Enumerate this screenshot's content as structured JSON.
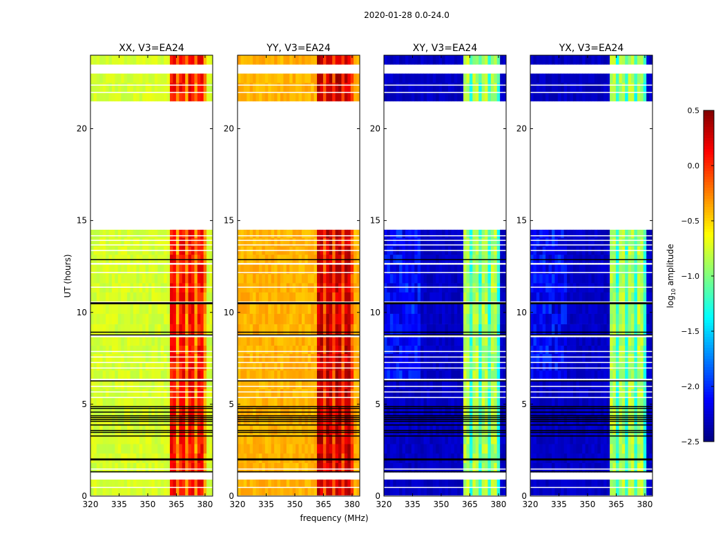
{
  "chart_data": {
    "type": "heatmap",
    "title": "2020-01-28 0.0-24.0",
    "xlabel": "frequency (MHz)",
    "ylabel": "UT (hours)",
    "xlim": [
      320,
      384
    ],
    "ylim": [
      0,
      24
    ],
    "xticks": [
      "320",
      "335",
      "350",
      "365",
      "380"
    ],
    "xtick_values": [
      320,
      335,
      350,
      365,
      380
    ],
    "yticks": [
      "0",
      "5",
      "10",
      "15",
      "20"
    ],
    "ytick_values": [
      0,
      5,
      10,
      15,
      20
    ],
    "colorbar": {
      "label": "log",
      "label_sub": "10",
      "label_rest": " amplitude",
      "range": [
        -2.5,
        0.5
      ],
      "ticks": [
        "0.5",
        "0.0",
        "−0.5",
        "−1.0",
        "−1.5",
        "−2.0",
        "−2.5"
      ],
      "tick_values": [
        0.5,
        0.0,
        -0.5,
        -1.0,
        -1.5,
        -2.0,
        -2.5
      ],
      "colormap": "jet"
    },
    "data_time_ranges": [
      [
        0.05,
        0.9
      ],
      [
        1.3,
        4.9
      ],
      [
        4.9,
        6.3
      ],
      [
        6.4,
        8.65
      ],
      [
        8.8,
        10.5
      ],
      [
        10.6,
        12.6
      ],
      [
        12.7,
        14.5
      ],
      [
        21.5,
        23.0
      ],
      [
        23.5,
        24.0
      ]
    ],
    "flagged_black_times": [
      1.35,
      2.0,
      2.05,
      3.3,
      3.5,
      3.6,
      3.9,
      4.1,
      4.2,
      4.3,
      4.4,
      4.6,
      4.8,
      4.9,
      6.3,
      8.8,
      8.95,
      10.5,
      10.55,
      12.9
    ],
    "flagged_white_times": [
      0.5,
      1.0,
      1.5,
      5.4,
      5.7,
      6.0,
      7.0,
      7.3,
      7.6,
      7.9,
      11.4,
      12.2,
      13.4,
      13.7,
      13.95,
      14.2,
      22.0,
      22.4
    ],
    "panels": [
      {
        "title": "XX, V3=EA24",
        "base_level": -0.75,
        "band_level": -0.05,
        "band_range": [
          362,
          381
        ]
      },
      {
        "title": "YY, V3=EA24",
        "base_level": -0.4,
        "band_level": 0.15,
        "band_range": [
          362,
          381
        ]
      },
      {
        "title": "XY, V3=EA24",
        "base_level": -2.3,
        "band_level": -1.0,
        "band_range": [
          362,
          380
        ]
      },
      {
        "title": "YX, V3=EA24",
        "base_level": -2.3,
        "band_level": -1.0,
        "band_range": [
          362,
          380
        ]
      }
    ]
  }
}
